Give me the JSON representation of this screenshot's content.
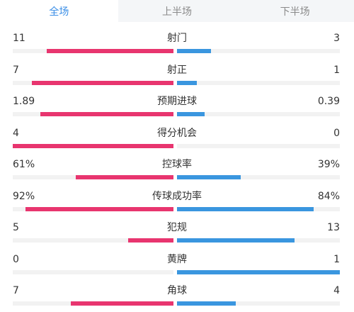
{
  "tabs": [
    {
      "label": "全场",
      "active": true
    },
    {
      "label": "上半场",
      "active": false
    },
    {
      "label": "下半场",
      "active": false
    }
  ],
  "colors": {
    "home": "#e8356f",
    "away": "#3a96df",
    "active_tab": "#3a8ee6"
  },
  "stats": [
    {
      "name": "射门",
      "home": "11",
      "away": "3",
      "home_share": 0.79,
      "away_share": 0.21
    },
    {
      "name": "射正",
      "home": "7",
      "away": "1",
      "home_share": 0.88,
      "away_share": 0.12
    },
    {
      "name": "预期进球",
      "home": "1.89",
      "away": "0.39",
      "home_share": 0.83,
      "away_share": 0.17
    },
    {
      "name": "得分机会",
      "home": "4",
      "away": "0",
      "home_share": 1.0,
      "away_share": 0.0
    },
    {
      "name": "控球率",
      "home": "61%",
      "away": "39%",
      "home_share": 0.61,
      "away_share": 0.39
    },
    {
      "name": "传球成功率",
      "home": "92%",
      "away": "84%",
      "home_share": 0.92,
      "away_share": 0.84
    },
    {
      "name": "犯规",
      "home": "5",
      "away": "13",
      "home_share": 0.28,
      "away_share": 0.72
    },
    {
      "name": "黄牌",
      "home": "0",
      "away": "1",
      "home_share": 0.0,
      "away_share": 1.0
    },
    {
      "name": "角球",
      "home": "7",
      "away": "4",
      "home_share": 0.64,
      "away_share": 0.36
    }
  ]
}
